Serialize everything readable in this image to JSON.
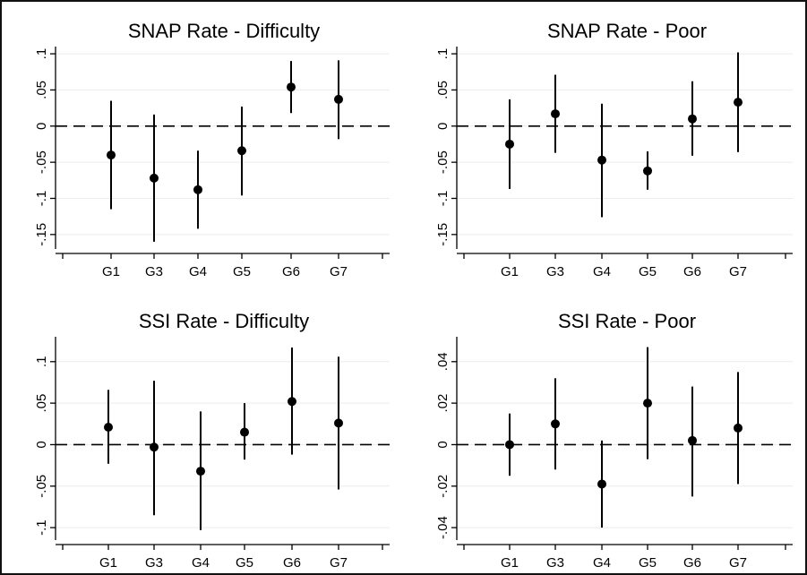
{
  "chart_data": [
    {
      "type": "scatter",
      "title": "SNAP Rate - Difficulty",
      "categories": [
        "G1",
        "G3",
        "G4",
        "G5",
        "G6",
        "G7"
      ],
      "yticks": [
        ".1",
        ".05",
        "0",
        "-.05",
        "-.1",
        "-.15"
      ],
      "ytick_values": [
        0.1,
        0.05,
        0,
        -0.05,
        -0.1,
        -0.15
      ],
      "ylim": [
        -0.17,
        0.11
      ],
      "points": [
        {
          "x": "G1",
          "y": -0.04,
          "low": -0.115,
          "high": 0.035
        },
        {
          "x": "G3",
          "y": -0.072,
          "low": -0.16,
          "high": 0.016
        },
        {
          "x": "G4",
          "y": -0.088,
          "low": -0.142,
          "high": -0.034
        },
        {
          "x": "G5",
          "y": -0.034,
          "low": -0.096,
          "high": 0.027
        },
        {
          "x": "G6",
          "y": 0.054,
          "low": 0.018,
          "high": 0.09
        },
        {
          "x": "G7",
          "y": 0.037,
          "low": -0.018,
          "high": 0.091
        }
      ],
      "reference_line": 0,
      "grid": true
    },
    {
      "type": "scatter",
      "title": "SNAP Rate - Poor",
      "categories": [
        "G1",
        "G3",
        "G4",
        "G5",
        "G6",
        "G7"
      ],
      "yticks": [
        ".1",
        ".05",
        "0",
        "-.05",
        "-.1",
        "-.15"
      ],
      "ytick_values": [
        0.1,
        0.05,
        0,
        -0.05,
        -0.1,
        -0.15
      ],
      "ylim": [
        -0.17,
        0.11
      ],
      "points": [
        {
          "x": "G1",
          "y": -0.025,
          "low": -0.087,
          "high": 0.037
        },
        {
          "x": "G3",
          "y": 0.017,
          "low": -0.037,
          "high": 0.071
        },
        {
          "x": "G4",
          "y": -0.047,
          "low": -0.126,
          "high": 0.031
        },
        {
          "x": "G5",
          "y": -0.062,
          "low": -0.088,
          "high": -0.035
        },
        {
          "x": "G6",
          "y": 0.01,
          "low": -0.041,
          "high": 0.062
        },
        {
          "x": "G7",
          "y": 0.033,
          "low": -0.036,
          "high": 0.102
        }
      ],
      "reference_line": 0,
      "grid": true
    },
    {
      "type": "scatter",
      "title": "SSI Rate - Difficulty",
      "categories": [
        "G1",
        "G3",
        "G4",
        "G5",
        "G6",
        "G7"
      ],
      "yticks": [
        ".1",
        ".05",
        "0",
        "-.05",
        "-.1"
      ],
      "ytick_values": [
        0.1,
        0.05,
        0,
        -0.05,
        -0.1
      ],
      "ylim": [
        -0.115,
        0.13
      ],
      "points": [
        {
          "x": "G1",
          "y": 0.021,
          "low": -0.023,
          "high": 0.066
        },
        {
          "x": "G3",
          "y": -0.003,
          "low": -0.085,
          "high": 0.077
        },
        {
          "x": "G4",
          "y": -0.032,
          "low": -0.103,
          "high": 0.04
        },
        {
          "x": "G5",
          "y": 0.015,
          "low": -0.018,
          "high": 0.05
        },
        {
          "x": "G6",
          "y": 0.052,
          "low": -0.012,
          "high": 0.117
        },
        {
          "x": "G7",
          "y": 0.026,
          "low": -0.054,
          "high": 0.106
        }
      ],
      "reference_line": 0,
      "grid": true
    },
    {
      "type": "scatter",
      "title": "SSI Rate - Poor",
      "categories": [
        "G1",
        "G3",
        "G4",
        "G5",
        "G6",
        "G7"
      ],
      "yticks": [
        ".04",
        ".02",
        "0",
        "-.02",
        "-.04"
      ],
      "ytick_values": [
        0.04,
        0.02,
        0,
        -0.02,
        -0.04
      ],
      "ylim": [
        -0.046,
        0.052
      ],
      "points": [
        {
          "x": "G1",
          "y": 0.0,
          "low": -0.015,
          "high": 0.015
        },
        {
          "x": "G3",
          "y": 0.01,
          "low": -0.012,
          "high": 0.032
        },
        {
          "x": "G4",
          "y": -0.019,
          "low": -0.04,
          "high": 0.002
        },
        {
          "x": "G5",
          "y": 0.02,
          "low": -0.007,
          "high": 0.047
        },
        {
          "x": "G6",
          "y": 0.002,
          "low": -0.025,
          "high": 0.028
        },
        {
          "x": "G7",
          "y": 0.008,
          "low": -0.019,
          "high": 0.035
        }
      ],
      "reference_line": 0,
      "grid": true
    }
  ]
}
